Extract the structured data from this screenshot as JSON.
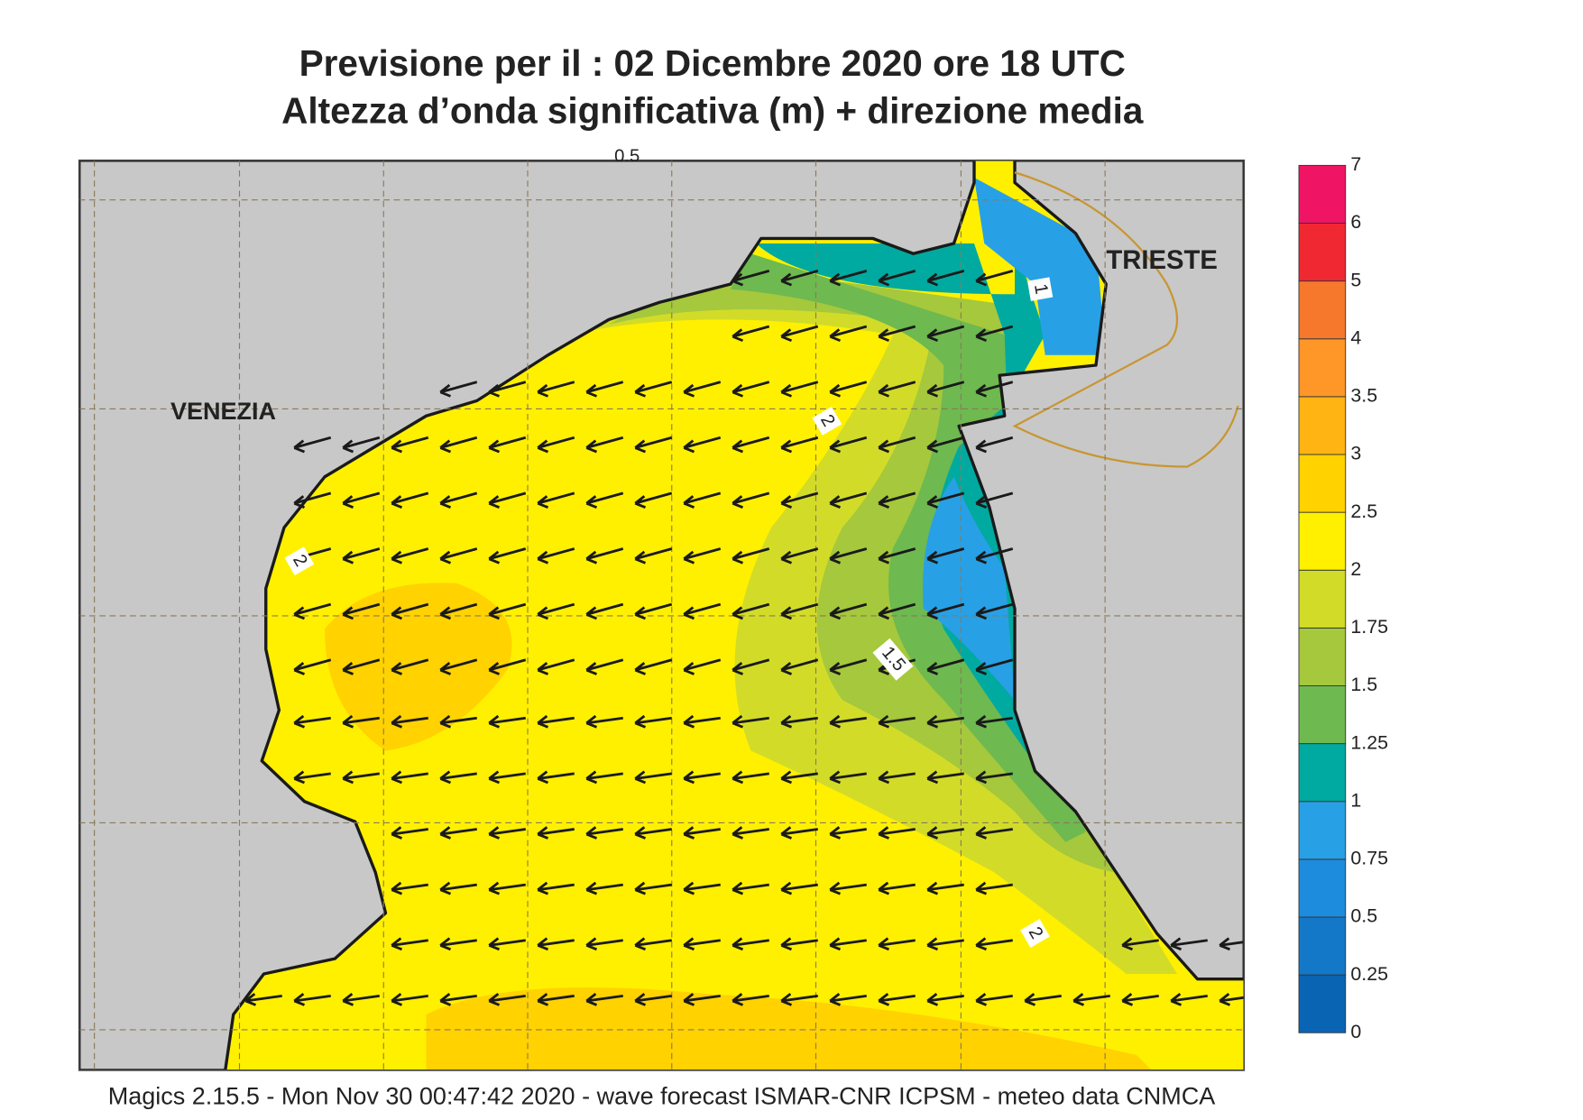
{
  "title": [
    "Previsione per il  :  02 Dicembre  2020   ore 18 UTC",
    "Altezza d’onda significativa (m) + direzione media"
  ],
  "places": [
    "VENEZIA",
    "TRIESTE"
  ],
  "contour_labels": [
    "0.5",
    "1",
    "2",
    "2",
    "1.5",
    "2"
  ],
  "legend": {
    "ticks": [
      0,
      0.25,
      0.5,
      0.75,
      1,
      1.25,
      1.5,
      1.75,
      2,
      2.5,
      3,
      3.5,
      4,
      5,
      6,
      7
    ],
    "colors": [
      "#0a64b4",
      "#1478c8",
      "#1e8cdc",
      "#28a0e6",
      "#00aaa0",
      "#6eb950",
      "#a5c83c",
      "#d2dc28",
      "#fff000",
      "#ffd200",
      "#ffb414",
      "#ff9628",
      "#f5782d",
      "#f02832",
      "#f01464"
    ]
  },
  "footer": "Magics 2.15.5 - Mon Nov 30 00:47:42 2020 - wave forecast  ISMAR-CNR  ICPSM - meteo data   CNMCA"
}
